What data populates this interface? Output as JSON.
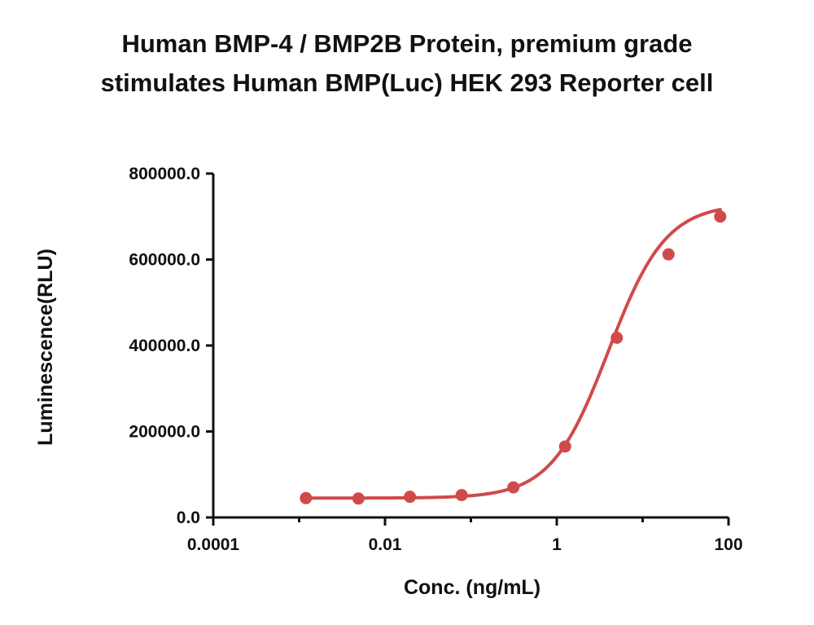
{
  "chart_data": {
    "type": "scatter",
    "title_line1": "Human BMP-4 / BMP2B Protein, premium grade",
    "title_line2": "stimulates Human BMP(Luc) HEK 293 Reporter cell",
    "xlabel": "Conc. (ng/mL)",
    "ylabel": "Luminescence(RLU)",
    "x_scale": "log",
    "xlim": [
      0.0001,
      100
    ],
    "ylim": [
      0,
      800000
    ],
    "x_ticks": [
      0.0001,
      0.01,
      1,
      100
    ],
    "x_tick_labels": [
      "0.0001",
      "0.01",
      "1",
      "100"
    ],
    "y_ticks": [
      0,
      200000,
      400000,
      600000,
      800000
    ],
    "y_tick_labels": [
      "0.0",
      "200000.0",
      "400000.0",
      "600000.0",
      "800000.0"
    ],
    "grid": false,
    "color": "#d04a4a",
    "series": [
      {
        "x": [
          0.0012,
          0.0049,
          0.0195,
          0.078,
          0.3125,
          1.25,
          5,
          20,
          80
        ],
        "y": [
          45000,
          44000,
          48000,
          52000,
          70000,
          165000,
          418000,
          612000,
          700000
        ]
      }
    ],
    "fit": {
      "model": "4PL",
      "bottom": 45000,
      "top": 730000,
      "ec50": 4.0,
      "hill": 1.3
    }
  }
}
